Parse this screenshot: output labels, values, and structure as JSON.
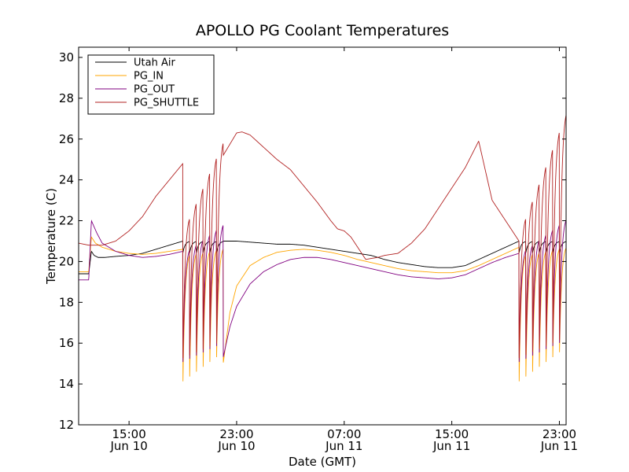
{
  "chart_data": {
    "type": "line",
    "title": "APOLLO PG Coolant Temperatures",
    "xlabel": "Date (GMT)",
    "ylabel": "Temperature (C)",
    "x_unit": "hours since Jun 10 00:00 GMT",
    "xlim": [
      11.25,
      47.5
    ],
    "ylim": [
      12,
      30.5
    ],
    "yticks": [
      12,
      14,
      16,
      18,
      20,
      22,
      24,
      26,
      28,
      30
    ],
    "xticks": [
      {
        "value": 15,
        "time": "15:00",
        "date": "Jun 10"
      },
      {
        "value": 23,
        "time": "23:00",
        "date": "Jun 10"
      },
      {
        "value": 31,
        "time": "07:00",
        "date": "Jun 11"
      },
      {
        "value": 39,
        "time": "15:00",
        "date": "Jun 11"
      },
      {
        "value": 47,
        "time": "23:00",
        "date": "Jun 11"
      }
    ],
    "grid": false,
    "legend_position": "top-left",
    "series": [
      {
        "name": "Utah Air",
        "color": "#000000",
        "x": [
          11.25,
          12.0,
          12.2,
          12.4,
          12.7,
          13.2,
          14.0,
          15.0,
          16.0,
          17.0,
          18.0,
          19.0,
          20.0,
          21.0,
          21.6,
          22.0,
          23.0,
          24.0,
          25.0,
          26.0,
          27.0,
          28.0,
          29.0,
          30.0,
          31.0,
          32.0,
          33.0,
          34.0,
          35.0,
          36.0,
          37.0,
          38.0,
          39.0,
          40.0,
          41.0,
          42.0,
          43.0,
          44.0,
          45.0
        ],
        "values": [
          19.4,
          19.4,
          20.5,
          20.3,
          20.2,
          20.2,
          20.25,
          20.3,
          20.4,
          20.6,
          20.8,
          21.0,
          20.95,
          20.9,
          20.95,
          21.0,
          21.0,
          20.95,
          20.9,
          20.85,
          20.85,
          20.8,
          20.7,
          20.6,
          20.5,
          20.4,
          20.3,
          20.1,
          19.95,
          19.85,
          19.75,
          19.7,
          19.7,
          19.8,
          20.1,
          20.4,
          20.7,
          21.0,
          21.0
        ]
      },
      {
        "name": "PG_IN",
        "color": "#ffa500",
        "x": [
          11.25,
          12.0,
          12.2,
          12.5,
          13.0,
          14.0,
          15.0,
          16.0,
          17.0,
          18.0,
          19.0,
          22.0,
          22.5,
          23.0,
          24.0,
          25.0,
          26.0,
          27.0,
          28.0,
          29.0,
          30.0,
          31.0,
          32.0,
          33.0,
          34.0,
          35.0,
          36.0,
          37.0,
          38.0,
          39.0,
          40.0,
          41.0,
          42.0,
          43.0,
          44.0
        ],
        "values": [
          19.5,
          19.5,
          21.2,
          20.9,
          20.7,
          20.5,
          20.4,
          20.35,
          20.4,
          20.5,
          20.6,
          15.0,
          17.5,
          18.8,
          19.8,
          20.2,
          20.45,
          20.55,
          20.6,
          20.55,
          20.45,
          20.3,
          20.1,
          19.95,
          19.8,
          19.65,
          19.55,
          19.5,
          19.45,
          19.45,
          19.55,
          19.8,
          20.1,
          20.4,
          20.7
        ]
      },
      {
        "name": "PG_OUT",
        "color": "#800080",
        "x": [
          11.25,
          12.0,
          12.2,
          12.6,
          13.0,
          14.0,
          15.0,
          16.0,
          17.0,
          18.0,
          19.0,
          22.0,
          22.5,
          23.0,
          24.0,
          25.0,
          26.0,
          27.0,
          28.0,
          29.0,
          30.0,
          31.0,
          32.0,
          33.0,
          34.0,
          35.0,
          36.0,
          37.0,
          38.0,
          39.0,
          40.0,
          41.0,
          42.0,
          43.0,
          44.0
        ],
        "values": [
          19.1,
          19.1,
          22.0,
          21.4,
          20.9,
          20.5,
          20.3,
          20.2,
          20.25,
          20.35,
          20.5,
          15.3,
          16.8,
          17.8,
          18.9,
          19.5,
          19.85,
          20.1,
          20.2,
          20.2,
          20.1,
          19.95,
          19.8,
          19.65,
          19.5,
          19.35,
          19.25,
          19.2,
          19.15,
          19.2,
          19.35,
          19.65,
          19.95,
          20.2,
          20.4
        ]
      },
      {
        "name": "PG_SHUTTLE",
        "color": "#b22222",
        "x": [
          11.25,
          12.0,
          13.0,
          14.0,
          15.0,
          16.0,
          17.0,
          18.0,
          19.0,
          22.0,
          23.0,
          23.4,
          24.0,
          25.0,
          26.0,
          27.0,
          28.0,
          29.0,
          30.0,
          30.5,
          31.0,
          31.5,
          32.0,
          32.6,
          33.0,
          33.5,
          34.0,
          35.0,
          36.0,
          37.0,
          38.0,
          39.0,
          40.0,
          41.0,
          42.0,
          43.0,
          44.0
        ],
        "values": [
          20.9,
          20.8,
          20.8,
          21.0,
          21.5,
          22.2,
          23.2,
          24.0,
          24.8,
          25.2,
          26.3,
          26.35,
          26.2,
          25.6,
          25.0,
          24.5,
          23.7,
          22.9,
          22.0,
          21.6,
          21.5,
          21.2,
          20.7,
          20.1,
          20.15,
          20.2,
          20.3,
          20.4,
          20.9,
          21.6,
          22.6,
          23.6,
          24.6,
          25.9,
          23.0,
          22.0,
          21.0
        ]
      }
    ],
    "cycling_segments": [
      {
        "start": 19.0,
        "end": 22.0,
        "period": 0.5,
        "peak_growth": 0.7
      },
      {
        "start": 44.0,
        "end": 47.5,
        "period": 0.5,
        "peak_growth": 0.8
      }
    ]
  }
}
